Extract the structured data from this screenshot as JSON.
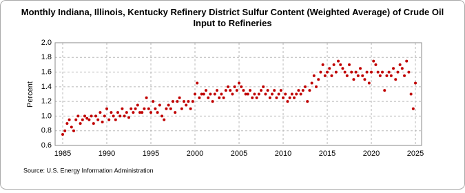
{
  "chart_data": {
    "type": "scatter",
    "title": "Monthly Indiana, Illinois, Kentucky Refinery District Sulfur Content (Weighted Average) of Crude Oil Input to Refineries",
    "ylabel": "Percent",
    "source": "Source: U.S. Energy Information Administration",
    "grid": true,
    "xlim": [
      1984.14,
      2025.7
    ],
    "ylim": [
      0.6,
      2.0
    ],
    "xticks": [
      1985,
      1990,
      1995,
      2000,
      2005,
      2010,
      2015,
      2020,
      2025
    ],
    "yticks": [
      0.6,
      0.8,
      {
        "value": 1,
        "label": "1.0"
      },
      1.2,
      1.4,
      1.6,
      1.8,
      {
        "value": 2,
        "label": "2.0"
      }
    ],
    "series": [
      {
        "color": "#c00000",
        "x": [
          1985,
          1985.25,
          1985.5,
          1985.75,
          1986,
          1986.25,
          1986.5,
          1986.75,
          1987,
          1987.25,
          1987.5,
          1987.75,
          1988,
          1988.25,
          1988.5,
          1988.75,
          1989,
          1989.25,
          1989.5,
          1989.75,
          1990,
          1990.25,
          1990.5,
          1990.75,
          1991,
          1991.25,
          1991.5,
          1991.75,
          1992,
          1992.25,
          1992.5,
          1992.75,
          1993,
          1993.25,
          1993.5,
          1993.75,
          1994,
          1994.25,
          1994.5,
          1994.75,
          1995,
          1995.25,
          1995.5,
          1995.75,
          1996,
          1996.25,
          1996.5,
          1996.75,
          1997,
          1997.25,
          1997.5,
          1997.75,
          1998,
          1998.25,
          1998.5,
          1998.75,
          1999,
          1999.25,
          1999.5,
          1999.75,
          2000,
          2000.25,
          2000.5,
          2000.75,
          2001,
          2001.25,
          2001.5,
          2001.75,
          2002,
          2002.25,
          2002.5,
          2002.75,
          2003,
          2003.25,
          2003.5,
          2003.75,
          2004,
          2004.25,
          2004.5,
          2004.75,
          2005,
          2005.25,
          2005.5,
          2005.75,
          2006,
          2006.25,
          2006.5,
          2006.75,
          2007,
          2007.25,
          2007.5,
          2007.75,
          2008,
          2008.25,
          2008.5,
          2008.75,
          2009,
          2009.25,
          2009.5,
          2009.75,
          2010,
          2010.25,
          2010.5,
          2010.75,
          2011,
          2011.25,
          2011.5,
          2011.75,
          2012,
          2012.25,
          2012.5,
          2012.75,
          2013,
          2013.25,
          2013.5,
          2013.75,
          2014,
          2014.25,
          2014.5,
          2014.75,
          2015,
          2015.25,
          2015.5,
          2015.75,
          2016,
          2016.25,
          2016.5,
          2016.75,
          2017,
          2017.25,
          2017.5,
          2017.75,
          2018,
          2018.25,
          2018.5,
          2018.75,
          2019,
          2019.25,
          2019.5,
          2019.75,
          2020,
          2020.25,
          2020.5,
          2020.75,
          2021,
          2021.25,
          2021.5,
          2021.75,
          2022,
          2022.25,
          2022.5,
          2022.75,
          2023,
          2023.25,
          2023.5,
          2023.75,
          2024,
          2024.25,
          2024.5,
          2024.75,
          2025
        ],
        "values": [
          0.75,
          0.8,
          0.9,
          0.95,
          0.85,
          0.8,
          0.95,
          1.0,
          0.9,
          0.95,
          1.0,
          0.97,
          0.95,
          1.0,
          0.9,
          1.0,
          0.95,
          1.05,
          0.92,
          1.0,
          1.1,
          0.95,
          1.05,
          1.0,
          0.95,
          1.05,
          1.0,
          1.1,
          1.0,
          1.05,
          0.98,
          1.1,
          1.05,
          1.1,
          1.15,
          1.05,
          1.05,
          1.1,
          1.25,
          1.1,
          1.05,
          1.2,
          1.1,
          1.05,
          1.15,
          1.0,
          0.95,
          1.1,
          1.15,
          1.1,
          1.2,
          1.05,
          1.2,
          1.25,
          1.1,
          1.2,
          1.15,
          1.2,
          1.1,
          1.2,
          1.3,
          1.45,
          1.25,
          1.3,
          1.3,
          1.35,
          1.25,
          1.3,
          1.2,
          1.3,
          1.35,
          1.25,
          1.3,
          1.25,
          1.35,
          1.4,
          1.35,
          1.3,
          1.4,
          1.35,
          1.45,
          1.4,
          1.35,
          1.3,
          1.3,
          1.35,
          1.25,
          1.3,
          1.25,
          1.3,
          1.35,
          1.4,
          1.3,
          1.35,
          1.25,
          1.3,
          1.35,
          1.25,
          1.3,
          1.35,
          1.25,
          1.3,
          1.2,
          1.25,
          1.3,
          1.25,
          1.3,
          1.35,
          1.3,
          1.35,
          1.4,
          1.2,
          1.35,
          1.45,
          1.55,
          1.4,
          1.5,
          1.6,
          1.7,
          1.55,
          1.6,
          1.65,
          1.55,
          1.7,
          1.6,
          1.75,
          1.7,
          1.65,
          1.6,
          1.55,
          1.7,
          1.6,
          1.5,
          1.6,
          1.55,
          1.65,
          1.55,
          1.5,
          1.6,
          1.45,
          1.6,
          1.75,
          1.7,
          1.6,
          1.55,
          1.6,
          1.35,
          1.55,
          1.6,
          1.55,
          1.65,
          1.5,
          1.6,
          1.7,
          1.65,
          1.55,
          1.75,
          1.6,
          1.3,
          1.1,
          1.45
        ]
      }
    ]
  }
}
